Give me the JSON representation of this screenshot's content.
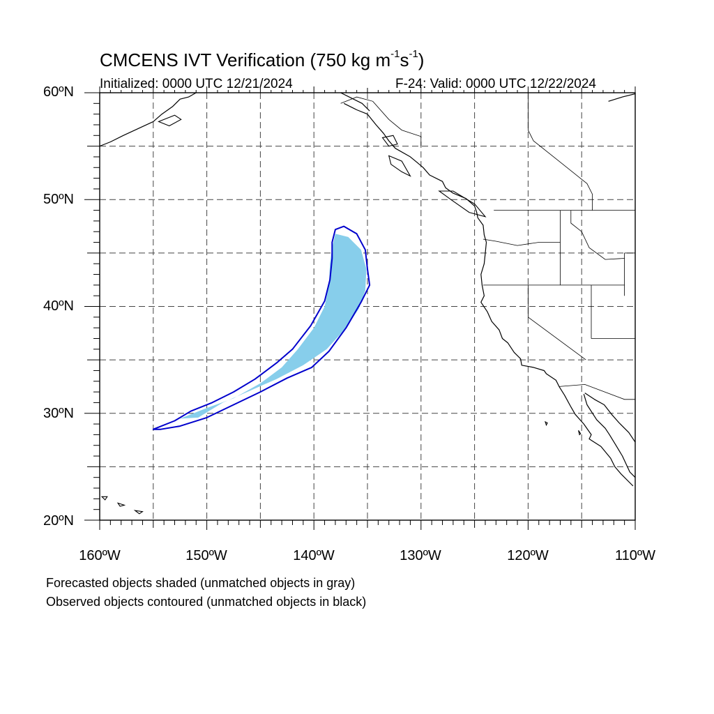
{
  "title": {
    "text": "CMCENS IVT Verification (750 kg m",
    "sup1": "-1",
    "mid": "s",
    "sup2": "-1",
    "close": ")"
  },
  "subtitle": {
    "left": "Initialized: 0000 UTC 12/21/2024",
    "right": "F-24: Valid: 0000 UTC 12/22/2024"
  },
  "map": {
    "projection": "cylindrical-equidistant",
    "lon_range": [
      -160,
      -110
    ],
    "lat_range": [
      20,
      60
    ],
    "gridlines": "dashed",
    "grid_spacing_deg": 5,
    "colors": {
      "forecast_fill": "#87CEEB",
      "observed_contour": "#0000CC",
      "coastline": "#000000",
      "grid": "#444444"
    }
  },
  "axes": {
    "lat_labels": [
      "60ºN",
      "50ºN",
      "40ºN",
      "30ºN",
      "20ºN"
    ],
    "lon_labels": [
      "160ºW",
      "150ºW",
      "140ºW",
      "130ºW",
      "120ºW",
      "110ºW"
    ]
  },
  "objects": {
    "forecast_object": {
      "lonlat": [
        [
          -152.5,
          29.5
        ],
        [
          -150,
          30.5
        ],
        [
          -147.5,
          31.4
        ],
        [
          -145,
          32.8
        ],
        [
          -143,
          34.3
        ],
        [
          -141.5,
          36.0
        ],
        [
          -140,
          38.0
        ],
        [
          -139.0,
          40.0
        ],
        [
          -138.6,
          42.0
        ],
        [
          -138.5,
          44.0
        ],
        [
          -138.3,
          45.5
        ],
        [
          -138.0,
          46.8
        ],
        [
          -136.8,
          46.5
        ],
        [
          -135.6,
          45.3
        ],
        [
          -135.1,
          43.5
        ],
        [
          -135.2,
          41.5
        ],
        [
          -135.8,
          39.8
        ],
        [
          -137.0,
          38.0
        ],
        [
          -138.8,
          36.0
        ],
        [
          -141.0,
          34.5
        ],
        [
          -143.5,
          33.2
        ],
        [
          -146.0,
          32.1
        ],
        [
          -148.5,
          31.0
        ],
        [
          -150.8,
          29.6
        ]
      ]
    },
    "observed_object": {
      "lonlat": [
        [
          -155.0,
          28.5
        ],
        [
          -153.0,
          29.3
        ],
        [
          -151.5,
          30.2
        ],
        [
          -149.5,
          31.0
        ],
        [
          -147.5,
          32.0
        ],
        [
          -145.5,
          33.2
        ],
        [
          -143.5,
          34.7
        ],
        [
          -142.0,
          36.0
        ],
        [
          -140.3,
          38.2
        ],
        [
          -139.0,
          40.5
        ],
        [
          -138.5,
          42.5
        ],
        [
          -138.3,
          44.5
        ],
        [
          -138.3,
          46.0
        ],
        [
          -138.0,
          47.2
        ],
        [
          -137.2,
          47.5
        ],
        [
          -136.0,
          46.8
        ],
        [
          -135.2,
          45.3
        ],
        [
          -135.0,
          43.5
        ],
        [
          -134.8,
          42.0
        ],
        [
          -135.6,
          40.4
        ],
        [
          -137.0,
          38.0
        ],
        [
          -138.6,
          35.8
        ],
        [
          -140.2,
          34.3
        ],
        [
          -142.5,
          33.3
        ],
        [
          -145.0,
          32.0
        ],
        [
          -147.5,
          30.8
        ],
        [
          -150.0,
          29.6
        ],
        [
          -152.5,
          28.8
        ],
        [
          -154.3,
          28.5
        ]
      ]
    }
  },
  "legend": {
    "line1": "Forecasted objects shaded (unmatched objects in gray)",
    "line2": "Observed objects contoured (unmatched objects in black)"
  }
}
